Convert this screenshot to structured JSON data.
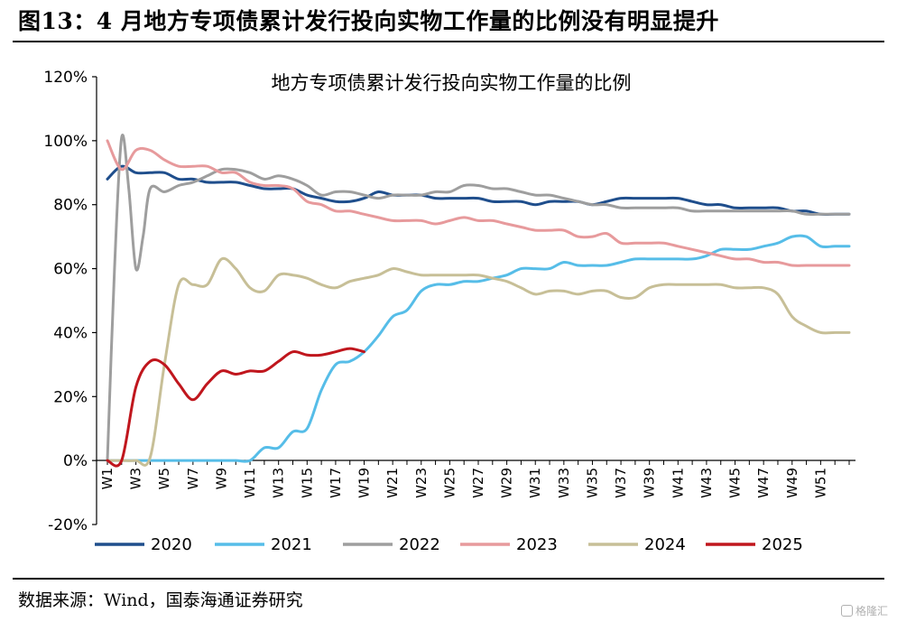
{
  "figure_title": "图13：4 月地方专项债累计发行投向实物工作量的比例没有明显提升",
  "source_note": "数据来源：Wind，国泰海通证券研究",
  "watermark": "格隆汇",
  "chart_data": {
    "type": "line",
    "title": "地方专项债累计发行投向实物工作量的比例",
    "xlabel": "",
    "ylabel": "",
    "ylim": [
      -20,
      120
    ],
    "yticks": [
      -20,
      0,
      20,
      40,
      60,
      80,
      100,
      120
    ],
    "ytick_labels": [
      "-20%",
      "0%",
      "20%",
      "40%",
      "60%",
      "80%",
      "100%",
      "120%"
    ],
    "x_range": [
      1,
      53
    ],
    "xtick_labels": [
      "W1",
      "W3",
      "W5",
      "W7",
      "W9",
      "W11",
      "W13",
      "W15",
      "W17",
      "W19",
      "W21",
      "W23",
      "W25",
      "W27",
      "W29",
      "W31",
      "W33",
      "W35",
      "W37",
      "W39",
      "W41",
      "W43",
      "W45",
      "W47",
      "W49",
      "W51"
    ],
    "xtick_weeks": [
      1,
      3,
      5,
      7,
      9,
      11,
      13,
      15,
      17,
      19,
      21,
      23,
      25,
      27,
      29,
      31,
      33,
      35,
      37,
      39,
      41,
      43,
      45,
      47,
      49,
      51
    ],
    "legend_position": "bottom",
    "grid": false,
    "series": [
      {
        "name": "2020",
        "color": "#1f4e8c",
        "x": [
          1,
          2,
          3,
          4,
          5,
          6,
          7,
          8,
          9,
          10,
          11,
          12,
          13,
          14,
          15,
          16,
          17,
          18,
          19,
          20,
          21,
          22,
          23,
          24,
          25,
          26,
          27,
          28,
          29,
          30,
          31,
          32,
          33,
          34,
          35,
          36,
          37,
          38,
          39,
          40,
          41,
          42,
          43,
          44,
          45,
          46,
          47,
          48,
          49,
          50,
          51,
          52,
          53
        ],
        "values": [
          88,
          92,
          90,
          90,
          90,
          88,
          88,
          87,
          87,
          87,
          86,
          85,
          85,
          85,
          83,
          82,
          81,
          81,
          82,
          84,
          83,
          83,
          83,
          82,
          82,
          82,
          82,
          81,
          81,
          81,
          80,
          81,
          81,
          81,
          80,
          81,
          82,
          82,
          82,
          82,
          82,
          81,
          80,
          80,
          79,
          79,
          79,
          79,
          78,
          78,
          77,
          77,
          77
        ]
      },
      {
        "name": "2021",
        "color": "#56bde8",
        "x": [
          1,
          2,
          3,
          4,
          5,
          6,
          7,
          8,
          9,
          10,
          11,
          12,
          13,
          14,
          15,
          16,
          17,
          18,
          19,
          20,
          21,
          22,
          23,
          24,
          25,
          26,
          27,
          28,
          29,
          30,
          31,
          32,
          33,
          34,
          35,
          36,
          37,
          38,
          39,
          40,
          41,
          42,
          43,
          44,
          45,
          46,
          47,
          48,
          49,
          50,
          51,
          52,
          53
        ],
        "values": [
          0,
          0,
          0,
          0,
          0,
          0,
          0,
          0,
          0,
          0,
          0,
          4,
          4,
          9,
          10,
          22,
          30,
          31,
          34,
          39,
          45,
          47,
          53,
          55,
          55,
          56,
          56,
          57,
          58,
          60,
          60,
          60,
          62,
          61,
          61,
          61,
          62,
          63,
          63,
          63,
          63,
          63,
          64,
          66,
          66,
          66,
          67,
          68,
          70,
          70,
          67,
          67,
          67
        ]
      },
      {
        "name": "2022",
        "color": "#9e9e9e",
        "x": [
          1,
          1.5,
          2,
          2.5,
          3,
          3.5,
          4,
          5,
          6,
          7,
          8,
          9,
          10,
          11,
          12,
          13,
          14,
          15,
          16,
          17,
          18,
          19,
          20,
          21,
          22,
          23,
          24,
          25,
          26,
          27,
          28,
          29,
          30,
          31,
          32,
          33,
          34,
          35,
          36,
          37,
          38,
          39,
          40,
          41,
          42,
          43,
          44,
          45,
          46,
          47,
          48,
          49,
          50,
          51,
          52,
          53
        ],
        "values": [
          0,
          60,
          101,
          85,
          60,
          70,
          85,
          84,
          86,
          87,
          89,
          91,
          91,
          90,
          88,
          89,
          88,
          86,
          83,
          84,
          84,
          83,
          82,
          83,
          83,
          83,
          84,
          84,
          86,
          86,
          85,
          85,
          84,
          83,
          83,
          82,
          81,
          80,
          80,
          79,
          79,
          79,
          79,
          79,
          78,
          78,
          78,
          78,
          78,
          78,
          78,
          78,
          77,
          77,
          77,
          77
        ]
      },
      {
        "name": "2023",
        "color": "#e79a9c",
        "x": [
          1,
          2,
          3,
          4,
          5,
          6,
          7,
          8,
          9,
          10,
          11,
          12,
          13,
          14,
          15,
          16,
          17,
          18,
          19,
          20,
          21,
          22,
          23,
          24,
          25,
          26,
          27,
          28,
          29,
          30,
          31,
          32,
          33,
          34,
          35,
          36,
          37,
          38,
          39,
          40,
          41,
          42,
          43,
          44,
          45,
          46,
          47,
          48,
          49,
          50,
          51,
          52,
          53
        ],
        "values": [
          100,
          91,
          97,
          97,
          94,
          92,
          92,
          92,
          90,
          90,
          87,
          86,
          86,
          85,
          81,
          80,
          78,
          78,
          77,
          76,
          75,
          75,
          75,
          74,
          75,
          76,
          75,
          75,
          74,
          73,
          72,
          72,
          72,
          70,
          70,
          71,
          68,
          68,
          68,
          68,
          67,
          66,
          65,
          64,
          63,
          63,
          62,
          62,
          61,
          61,
          61,
          61,
          61
        ]
      },
      {
        "name": "2024",
        "color": "#c7bf97",
        "x": [
          1,
          2,
          3,
          4,
          5,
          6,
          7,
          8,
          9,
          10,
          11,
          12,
          13,
          14,
          15,
          16,
          17,
          18,
          19,
          20,
          21,
          22,
          23,
          24,
          25,
          26,
          27,
          28,
          29,
          30,
          31,
          32,
          33,
          34,
          35,
          36,
          37,
          38,
          39,
          40,
          41,
          42,
          43,
          44,
          45,
          46,
          47,
          48,
          49,
          50,
          51,
          52,
          53
        ],
        "values": [
          0,
          0,
          0,
          1,
          30,
          55,
          55,
          55,
          63,
          60,
          54,
          53,
          58,
          58,
          57,
          55,
          54,
          56,
          57,
          58,
          60,
          59,
          58,
          58,
          58,
          58,
          58,
          57,
          56,
          54,
          52,
          53,
          53,
          52,
          53,
          53,
          51,
          51,
          54,
          55,
          55,
          55,
          55,
          55,
          54,
          54,
          54,
          52,
          45,
          42,
          40,
          40,
          40
        ]
      },
      {
        "name": "2025",
        "color": "#c0161d",
        "x": [
          1,
          2,
          3,
          4,
          5,
          6,
          7,
          8,
          9,
          10,
          11,
          12,
          13,
          14,
          15,
          16,
          17,
          18,
          19
        ],
        "values": [
          0,
          0,
          23,
          31,
          30,
          24,
          19,
          24,
          28,
          27,
          28,
          28,
          31,
          34,
          33,
          33,
          34,
          35,
          34
        ]
      }
    ]
  }
}
